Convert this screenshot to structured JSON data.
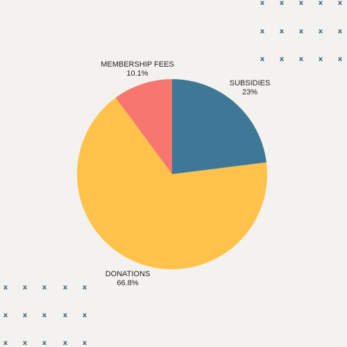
{
  "colors": {
    "background": "#f4f2ee",
    "decoration": "#3e6584"
  },
  "decoration": {
    "glyph": "x"
  },
  "chart_data": {
    "type": "pie",
    "title": "",
    "start_angle_deg": 0,
    "direction": "clockwise",
    "slices": [
      {
        "label": "SUBSIDIES",
        "value": 23,
        "display": "23%",
        "color": "#3f7797"
      },
      {
        "label": "DONATIONS",
        "value": 66.8,
        "display": "66.8%",
        "color": "#ffc24a"
      },
      {
        "label": "MEMBERSHIP FEES",
        "value": 10.1,
        "display": "10.1%",
        "color": "#f77670"
      }
    ]
  }
}
